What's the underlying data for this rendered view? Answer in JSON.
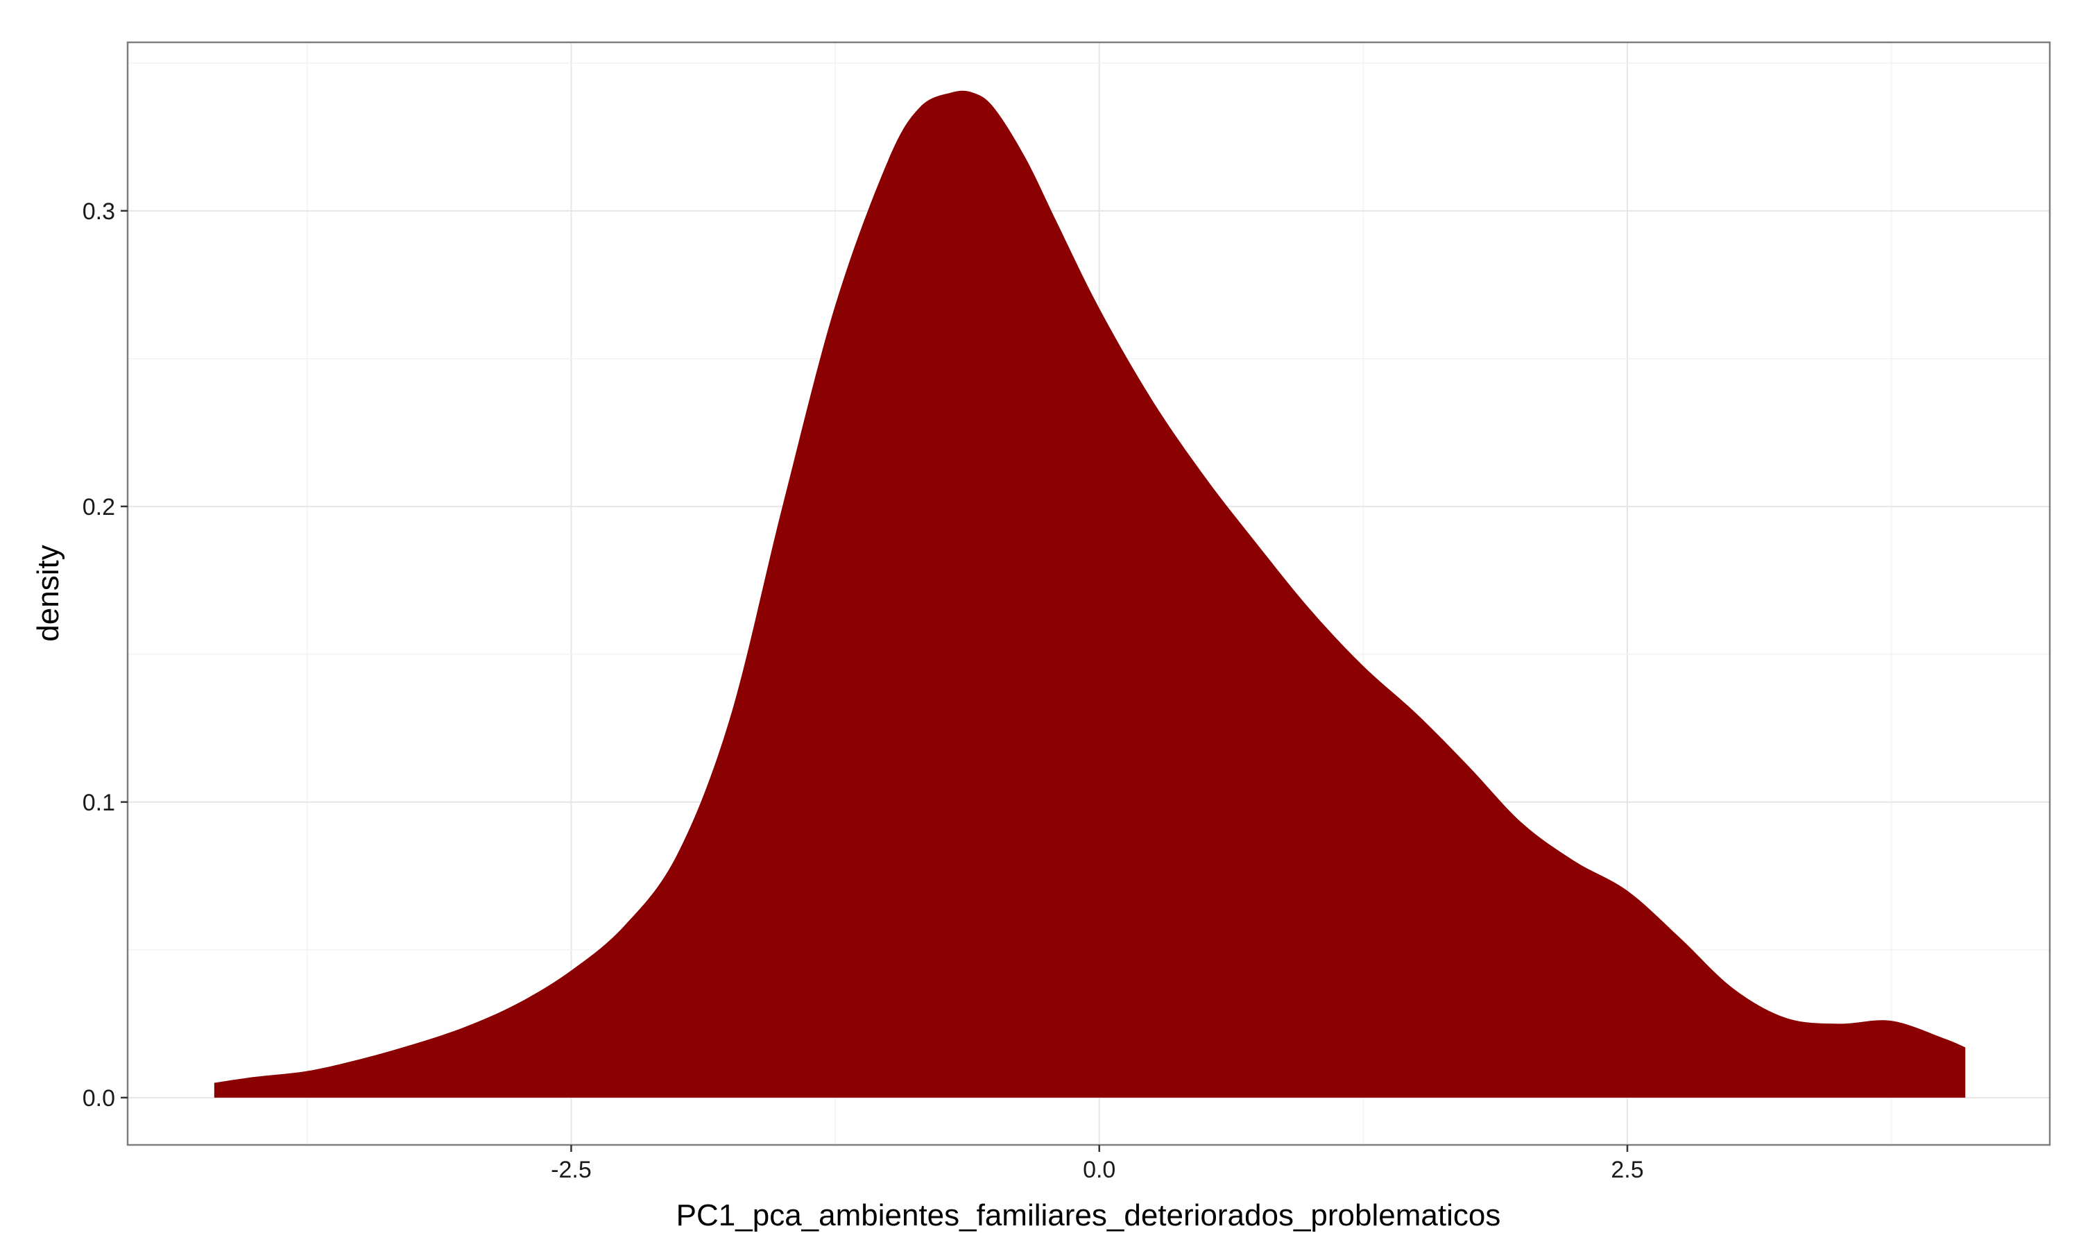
{
  "chart_data": {
    "type": "area",
    "title": "",
    "xlabel": "PC1_pca_ambientes_familiares_deteriorados_problematicos",
    "ylabel": "density",
    "xlim": [
      -4.6,
      4.5
    ],
    "ylim": [
      -0.016,
      0.357
    ],
    "x_ticks": [
      {
        "value": -2.5,
        "label": "-2.5"
      },
      {
        "value": 0.0,
        "label": "0.0"
      },
      {
        "value": 2.5,
        "label": "2.5"
      }
    ],
    "y_ticks": [
      {
        "value": 0.0,
        "label": "0.0"
      },
      {
        "value": 0.1,
        "label": "0.1"
      },
      {
        "value": 0.2,
        "label": "0.2"
      },
      {
        "value": 0.3,
        "label": "0.3"
      }
    ],
    "grid": true,
    "legend": "none",
    "series": [
      {
        "color": "#8B0000",
        "x": [
          -4.19,
          -4.0,
          -3.75,
          -3.5,
          -3.25,
          -3.0,
          -2.75,
          -2.5,
          -2.25,
          -2.0,
          -1.75,
          -1.5,
          -1.25,
          -1.0,
          -0.85,
          -0.7,
          -0.6,
          -0.5,
          -0.35,
          -0.2,
          0.0,
          0.25,
          0.5,
          0.75,
          1.0,
          1.25,
          1.5,
          1.75,
          2.0,
          2.25,
          2.5,
          2.75,
          3.0,
          3.25,
          3.5,
          3.75,
          4.0,
          4.1
        ],
        "y": [
          0.005,
          0.007,
          0.009,
          0.013,
          0.018,
          0.024,
          0.032,
          0.043,
          0.058,
          0.082,
          0.128,
          0.2,
          0.268,
          0.317,
          0.335,
          0.34,
          0.34,
          0.335,
          0.318,
          0.296,
          0.267,
          0.236,
          0.21,
          0.187,
          0.165,
          0.146,
          0.13,
          0.112,
          0.093,
          0.08,
          0.07,
          0.054,
          0.037,
          0.027,
          0.025,
          0.026,
          0.02,
          0.017
        ]
      }
    ]
  }
}
